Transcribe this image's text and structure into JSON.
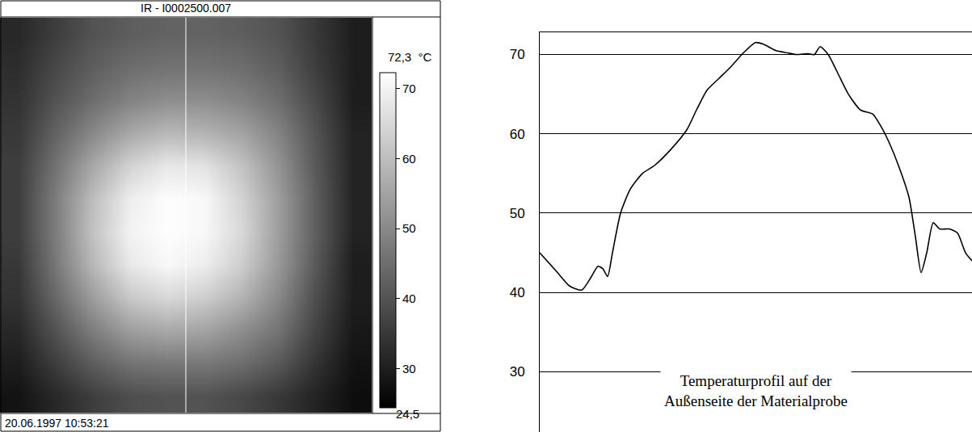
{
  "chart_data": [
    {
      "type": "heatmap",
      "title": "IR - I0002500.007",
      "timestamp": "20.06.1997 10:53:21",
      "tick_labels": false,
      "z": [
        [
          32,
          36,
          40,
          42,
          43,
          43,
          42,
          40,
          35,
          30
        ],
        [
          33,
          38,
          42,
          45,
          46,
          46,
          45,
          42,
          36,
          30
        ],
        [
          34,
          40,
          45,
          49,
          51,
          51,
          49,
          45,
          38,
          30
        ],
        [
          35,
          43,
          50,
          56,
          59,
          58,
          55,
          49,
          40,
          31
        ],
        [
          36,
          46,
          56,
          64,
          68,
          67,
          61,
          52,
          41,
          31
        ],
        [
          36,
          48,
          60,
          69,
          72,
          71,
          64,
          54,
          42,
          31
        ],
        [
          36,
          48,
          61,
          70,
          72,
          71,
          65,
          54,
          42,
          31
        ],
        [
          35,
          47,
          59,
          68,
          71,
          69,
          63,
          53,
          41,
          30
        ],
        [
          34,
          44,
          54,
          62,
          65,
          63,
          58,
          50,
          39,
          30
        ],
        [
          32,
          40,
          48,
          54,
          56,
          55,
          51,
          46,
          37,
          29
        ],
        [
          30,
          36,
          42,
          46,
          47,
          47,
          45,
          41,
          34,
          28
        ],
        [
          28,
          32,
          36,
          39,
          40,
          40,
          38,
          35,
          31,
          27
        ]
      ],
      "colorbar": {
        "range": [
          24.5,
          72.3
        ],
        "ticks": [
          30,
          40,
          50,
          60,
          70
        ],
        "range_labels": [
          {
            "value": 24.5,
            "label": "24,5"
          },
          {
            "value": 72.3,
            "label": "72,3"
          }
        ],
        "unit": "°C"
      }
    },
    {
      "type": "line",
      "annotation": [
        "Temperaturprofil auf der",
        "Außenseite der Materialprobe"
      ],
      "tick_labels": "y",
      "grid": true,
      "color": "#000000",
      "xlim": [
        0,
        535
      ],
      "ylim": [
        22.4,
        72.8
      ],
      "yticks": [
        30,
        40,
        50,
        60,
        70
      ],
      "x": [
        0,
        22,
        37,
        52,
        64,
        72,
        78,
        84,
        90,
        100,
        112,
        127,
        142,
        162,
        182,
        194,
        207,
        222,
        237,
        252,
        267,
        277,
        292,
        307,
        317,
        332,
        340,
        347,
        357,
        372,
        382,
        397,
        412,
        422,
        432,
        444,
        457,
        465,
        472,
        479,
        487,
        495,
        507,
        517,
        527,
        535
      ],
      "values": [
        45,
        42.5,
        40.8,
        40.3,
        42,
        43.3,
        43,
        42,
        45,
        50,
        53,
        55,
        56,
        58,
        60.5,
        63,
        65.5,
        67,
        68.5,
        70.2,
        71.5,
        71.3,
        70.5,
        70.2,
        70,
        70.1,
        70,
        71,
        70,
        67,
        65,
        63,
        62.5,
        61,
        59,
        56,
        52,
        47,
        42.5,
        45,
        48.8,
        48,
        48,
        47.5,
        45,
        44
      ]
    }
  ]
}
